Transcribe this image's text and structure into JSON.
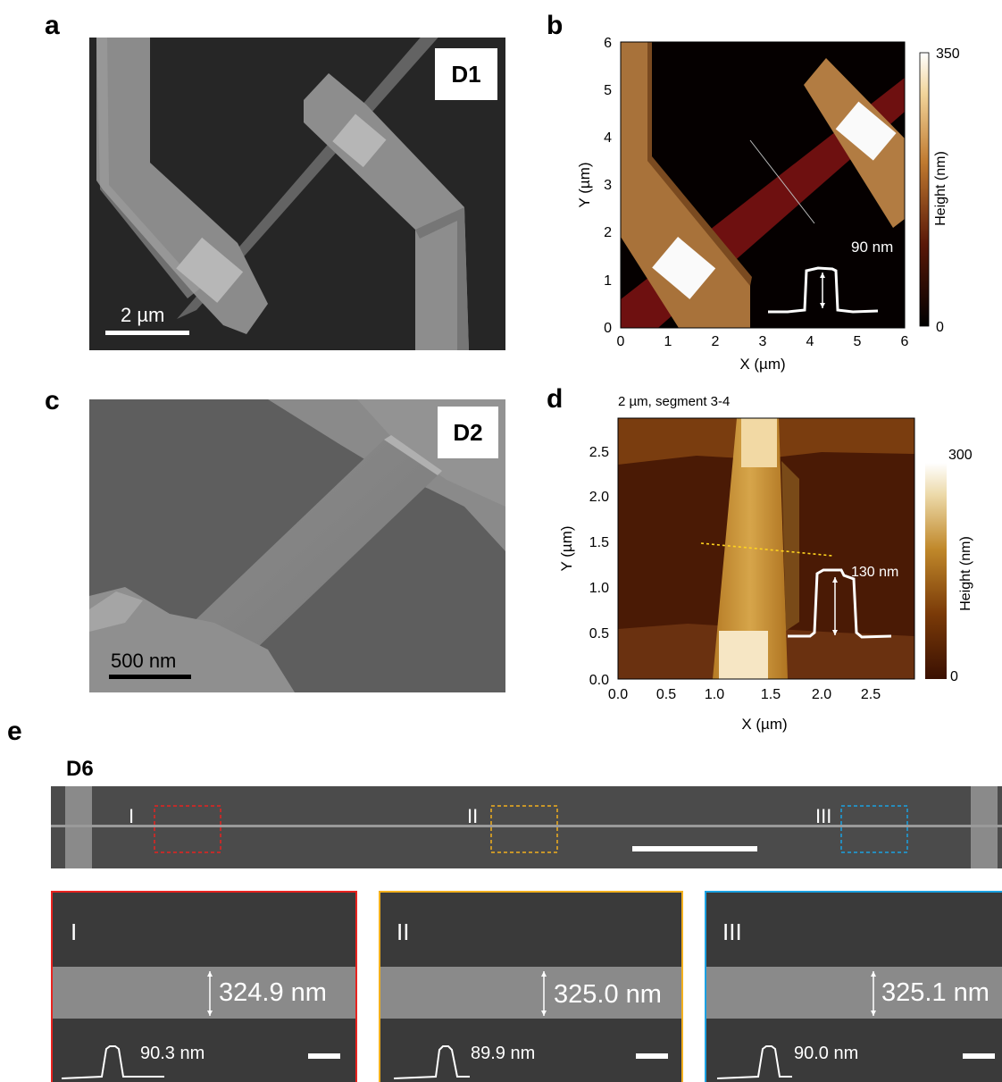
{
  "panels": {
    "a": {
      "label": "a",
      "device": "D1",
      "scale_bar": "2 µm"
    },
    "b": {
      "label": "b",
      "xlabel": "X (µm)",
      "ylabel": "Y (µm)",
      "xticks": [
        "0",
        "1",
        "2",
        "3",
        "4",
        "5",
        "6"
      ],
      "yticks": [
        "0",
        "1",
        "2",
        "3",
        "4",
        "5",
        "6"
      ],
      "colorbar_label": "Height (nm)",
      "colorbar_max": "350",
      "colorbar_min": "0",
      "profile_label": "90 nm"
    },
    "c": {
      "label": "c",
      "device": "D2",
      "scale_bar": "500 nm"
    },
    "d": {
      "label": "d",
      "title": "2 µm, segment 3-4",
      "xlabel": "X (µm)",
      "ylabel": "Y (µm)",
      "xticks": [
        "0.0",
        "0.5",
        "1.0",
        "1.5",
        "2.0",
        "2.5"
      ],
      "yticks": [
        "0.0",
        "0.5",
        "1.0",
        "1.5",
        "2.0",
        "2.5"
      ],
      "colorbar_label": "Height (nm)",
      "colorbar_max": "300",
      "colorbar_min": "0",
      "profile_label": "130 nm"
    },
    "e": {
      "label": "e",
      "device": "D6",
      "regions": [
        {
          "roman": "I",
          "color": "#e8231f",
          "width_label": "324.9 nm",
          "height_label": "90.3 nm"
        },
        {
          "roman": "II",
          "color": "#f2b01e",
          "width_label": "325.0 nm",
          "height_label": "89.9 nm"
        },
        {
          "roman": "III",
          "color": "#1ba1e2",
          "width_label": "325.1 nm",
          "height_label": "90.0 nm"
        }
      ]
    }
  },
  "colors": {
    "sem_bg": "#262626",
    "afm_b_bg": "#050000",
    "afm_d_bg": "#4a1a05",
    "nanowire_b": "#6e1010"
  }
}
